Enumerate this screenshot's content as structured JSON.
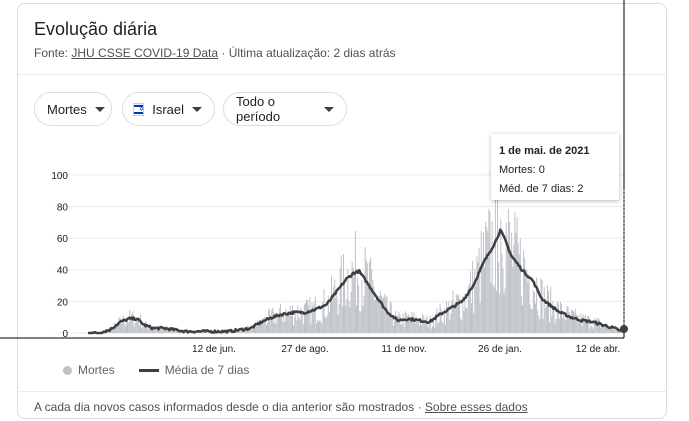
{
  "header": {
    "title": "Evolução diária",
    "source_prefix": "Fonte: ",
    "source_link": "JHU CSSE COVID-19 Data",
    "source_suffix": " · Última atualização: 2 dias atrás"
  },
  "filters": {
    "metric": "Mortes",
    "country": "Israel",
    "period": "Todo o período"
  },
  "tooltip": {
    "date": "1 de mai. de 2021",
    "deaths": "Mortes: 0",
    "avg": "Méd. de 7 dias: 2"
  },
  "legend": {
    "bars": "Mortes",
    "line": "Média de 7 dias"
  },
  "footer": {
    "note": "A cada dia novos casos informados desde o dia anterior são mostrados",
    "dot": " · ",
    "link": "Sobre esses dados"
  },
  "colors": {
    "bars": "#bdc1c6",
    "line": "#3c4043",
    "crosshair": "#000000"
  },
  "chart_data": {
    "type": "bar",
    "title": "",
    "xlabel": "",
    "ylabel": "",
    "ylim": [
      0,
      110
    ],
    "yticks": [
      0,
      20,
      40,
      60,
      80,
      100
    ],
    "xticks": [
      "12 de jun.",
      "27 de ago.",
      "11 de nov.",
      "26 de jan.",
      "12 de abr."
    ],
    "grid": true,
    "legend_position": "bottom-left",
    "series": [
      {
        "name": "Mortes",
        "kind": "bars",
        "anchors_day_value": [
          [
            0,
            0
          ],
          [
            10,
            0
          ],
          [
            20,
            2
          ],
          [
            30,
            7
          ],
          [
            38,
            9
          ],
          [
            45,
            9
          ],
          [
            52,
            5
          ],
          [
            60,
            3
          ],
          [
            70,
            3
          ],
          [
            80,
            2
          ],
          [
            90,
            1
          ],
          [
            110,
            1
          ],
          [
            130,
            1
          ],
          [
            150,
            3
          ],
          [
            160,
            7
          ],
          [
            170,
            10
          ],
          [
            180,
            12
          ],
          [
            190,
            13
          ],
          [
            200,
            13
          ],
          [
            210,
            15
          ],
          [
            220,
            18
          ],
          [
            228,
            25
          ],
          [
            238,
            34
          ],
          [
            245,
            38
          ],
          [
            250,
            39
          ],
          [
            258,
            31
          ],
          [
            265,
            24
          ],
          [
            275,
            14
          ],
          [
            285,
            8
          ],
          [
            295,
            9
          ],
          [
            305,
            8
          ],
          [
            315,
            7
          ],
          [
            325,
            12
          ],
          [
            335,
            16
          ],
          [
            345,
            20
          ],
          [
            355,
            30
          ],
          [
            365,
            45
          ],
          [
            375,
            57
          ],
          [
            380,
            65
          ],
          [
            385,
            58
          ],
          [
            390,
            49
          ],
          [
            400,
            40
          ],
          [
            410,
            33
          ],
          [
            418,
            22
          ],
          [
            425,
            18
          ],
          [
            435,
            13
          ],
          [
            445,
            10
          ],
          [
            455,
            8
          ],
          [
            465,
            7
          ],
          [
            475,
            5
          ],
          [
            485,
            3
          ],
          [
            492,
            1
          ],
          [
            494,
            0
          ]
        ]
      },
      {
        "name": "Média de 7 dias",
        "kind": "line",
        "anchors_day_value": [
          [
            0,
            0
          ],
          [
            10,
            0
          ],
          [
            20,
            2
          ],
          [
            30,
            7
          ],
          [
            38,
            9
          ],
          [
            45,
            9
          ],
          [
            52,
            5
          ],
          [
            60,
            3
          ],
          [
            70,
            3
          ],
          [
            80,
            2
          ],
          [
            90,
            1
          ],
          [
            110,
            1
          ],
          [
            130,
            1
          ],
          [
            150,
            3
          ],
          [
            160,
            7
          ],
          [
            170,
            10
          ],
          [
            180,
            12
          ],
          [
            190,
            13
          ],
          [
            200,
            13
          ],
          [
            210,
            15
          ],
          [
            220,
            18
          ],
          [
            228,
            25
          ],
          [
            238,
            34
          ],
          [
            245,
            38
          ],
          [
            250,
            39
          ],
          [
            258,
            31
          ],
          [
            265,
            24
          ],
          [
            275,
            14
          ],
          [
            285,
            8
          ],
          [
            295,
            9
          ],
          [
            305,
            8
          ],
          [
            315,
            7
          ],
          [
            325,
            12
          ],
          [
            335,
            16
          ],
          [
            345,
            20
          ],
          [
            355,
            30
          ],
          [
            365,
            45
          ],
          [
            375,
            57
          ],
          [
            380,
            65
          ],
          [
            385,
            58
          ],
          [
            390,
            49
          ],
          [
            400,
            40
          ],
          [
            410,
            33
          ],
          [
            418,
            22
          ],
          [
            425,
            18
          ],
          [
            435,
            13
          ],
          [
            445,
            10
          ],
          [
            455,
            8
          ],
          [
            465,
            7
          ],
          [
            475,
            5
          ],
          [
            485,
            3
          ],
          [
            492,
            1
          ],
          [
            494,
            2
          ]
        ]
      }
    ]
  }
}
